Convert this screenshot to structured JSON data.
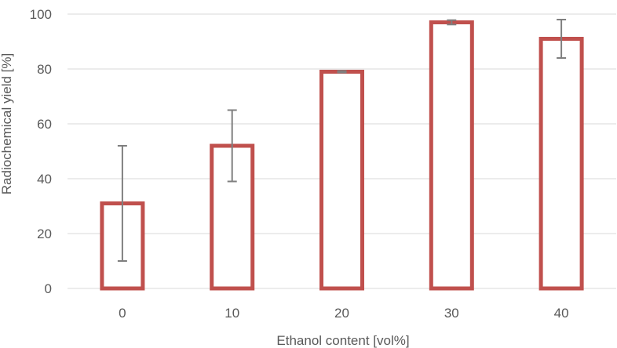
{
  "chart_data": {
    "type": "bar",
    "title": "",
    "xlabel": "Ethanol content [vol%]",
    "ylabel": "Radiochemical yield [%]",
    "categories": [
      "0",
      "10",
      "20",
      "30",
      "40"
    ],
    "series": [
      {
        "values": [
          31,
          52,
          79,
          97,
          91
        ],
        "error_low": [
          21,
          13,
          0.3,
          0.8,
          7
        ],
        "error_high": [
          21,
          13,
          0.3,
          0.8,
          7
        ]
      }
    ],
    "ylim": [
      0,
      100
    ],
    "yticks": [
      0,
      20,
      40,
      60,
      80,
      100
    ],
    "grid": true,
    "legend": "none",
    "colors": {
      "bar_outline": "#c0504d",
      "error_bar": "#7f7f7f",
      "grid": "#d9d9d9",
      "text": "#595959"
    }
  }
}
